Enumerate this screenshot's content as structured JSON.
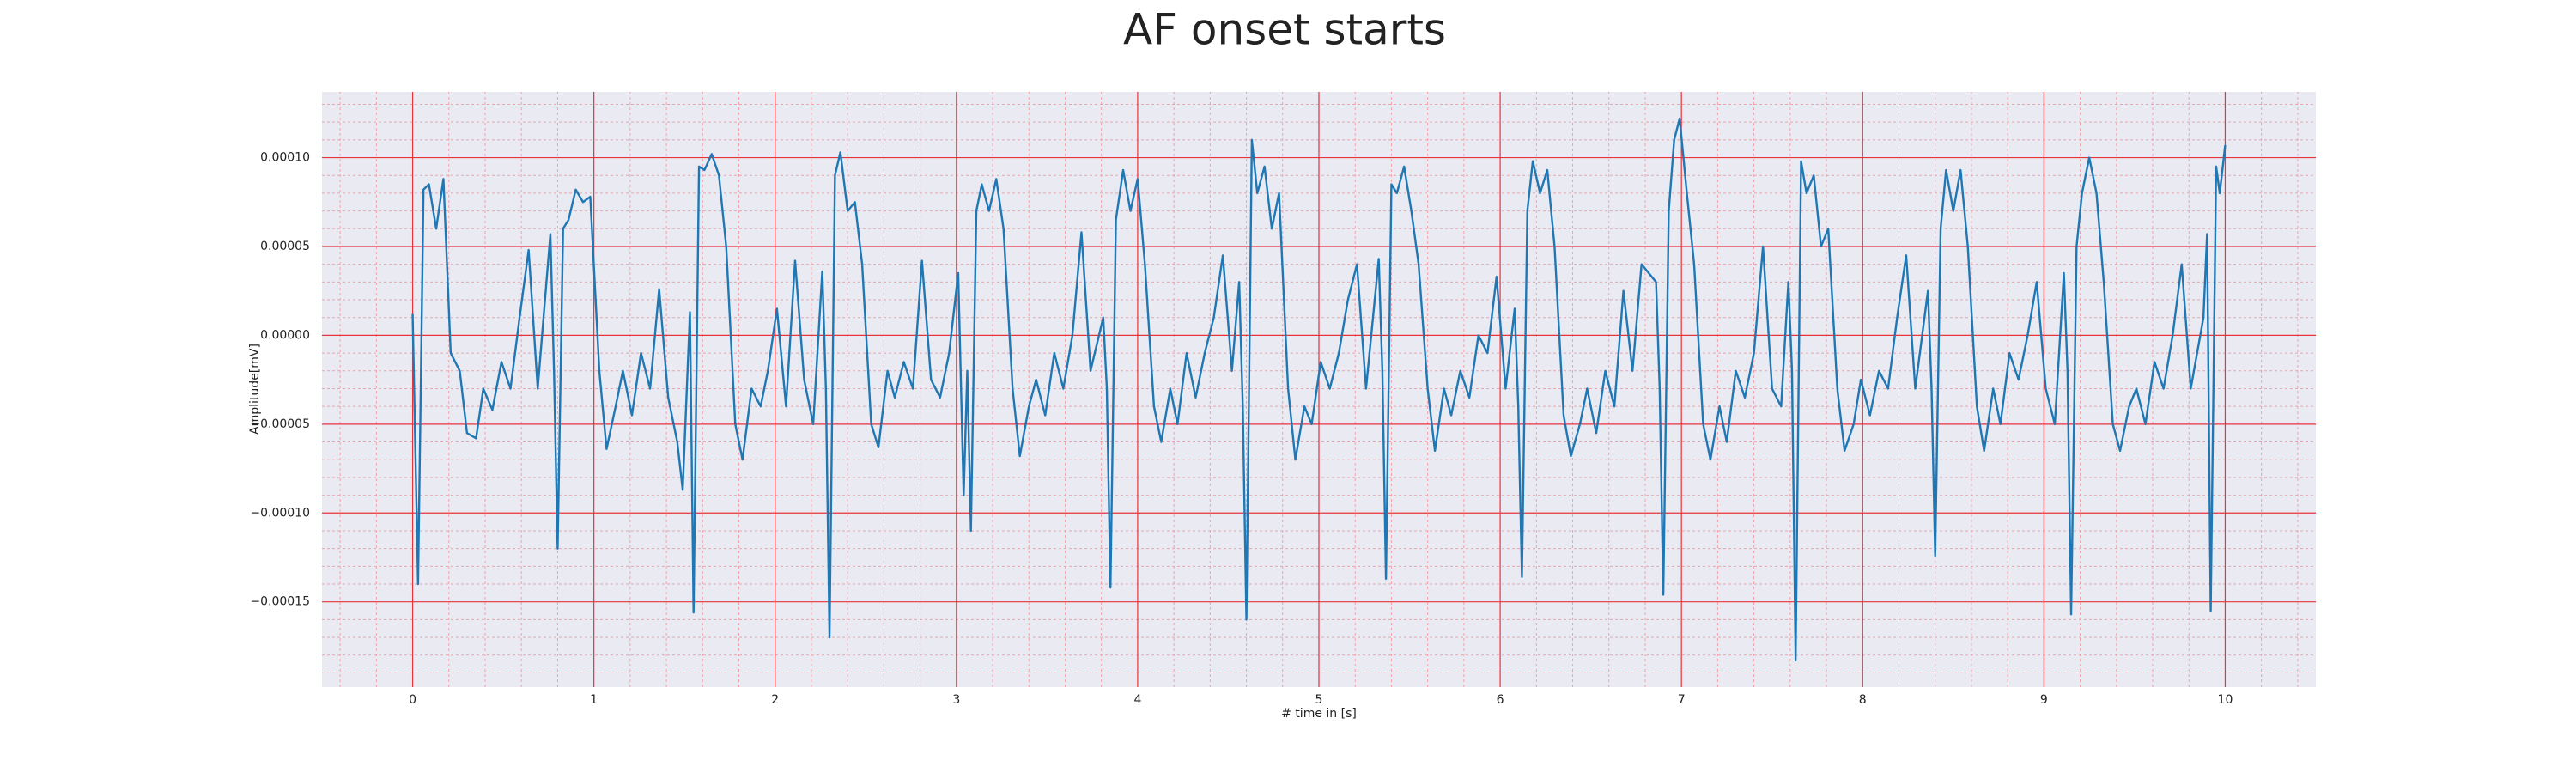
{
  "chart_data": {
    "type": "line",
    "title": "AF onset starts",
    "xlabel": "# time in [s]",
    "ylabel": "Amplitude[mV]",
    "color": "#1f77b4",
    "xlim": [
      -0.5,
      10.5
    ],
    "ylim": [
      -0.000198,
      0.000137
    ],
    "xticks": [
      0,
      1,
      2,
      3,
      4,
      5,
      6,
      7,
      8,
      9,
      10
    ],
    "yticks": [
      {
        "value": -0.00015,
        "label": "−0.00015"
      },
      {
        "value": -0.0001,
        "label": "−0.00010"
      },
      {
        "value": -5e-05,
        "label": "−0.00005"
      },
      {
        "value": 0,
        "label": "0.00000"
      },
      {
        "value": 5e-05,
        "label": "0.00005"
      },
      {
        "value": 0.0001,
        "label": "0.00010"
      }
    ],
    "grid": true,
    "minor_grid": true,
    "x": [
      0.0,
      0.03,
      0.06,
      0.09,
      0.13,
      0.17,
      0.21,
      0.26,
      0.3,
      0.35,
      0.39,
      0.44,
      0.49,
      0.54,
      0.59,
      0.64,
      0.69,
      0.76,
      0.78,
      0.8,
      0.83,
      0.86,
      0.9,
      0.94,
      0.98,
      1.03,
      1.07,
      1.12,
      1.16,
      1.21,
      1.26,
      1.31,
      1.36,
      1.41,
      1.46,
      1.49,
      1.53,
      1.55,
      1.58,
      1.61,
      1.65,
      1.69,
      1.73,
      1.78,
      1.82,
      1.87,
      1.92,
      1.96,
      2.01,
      2.06,
      2.11,
      2.16,
      2.21,
      2.26,
      2.28,
      2.3,
      2.33,
      2.36,
      2.4,
      2.44,
      2.48,
      2.53,
      2.57,
      2.62,
      2.66,
      2.71,
      2.76,
      2.81,
      2.86,
      2.91,
      2.96,
      3.01,
      3.04,
      3.06,
      3.08,
      3.11,
      3.14,
      3.18,
      3.22,
      3.26,
      3.31,
      3.35,
      3.4,
      3.44,
      3.49,
      3.54,
      3.59,
      3.64,
      3.69,
      3.74,
      3.81,
      3.83,
      3.85,
      3.88,
      3.92,
      3.96,
      4.0,
      4.04,
      4.09,
      4.13,
      4.18,
      4.22,
      4.27,
      4.32,
      4.37,
      4.42,
      4.47,
      4.52,
      4.56,
      4.58,
      4.6,
      4.63,
      4.66,
      4.7,
      4.74,
      4.78,
      4.83,
      4.87,
      4.92,
      4.96,
      5.01,
      5.06,
      5.11,
      5.16,
      5.21,
      5.26,
      5.33,
      5.35,
      5.37,
      5.4,
      5.43,
      5.47,
      5.51,
      5.55,
      5.6,
      5.64,
      5.69,
      5.73,
      5.78,
      5.83,
      5.88,
      5.93,
      5.98,
      6.03,
      6.08,
      6.1,
      6.12,
      6.15,
      6.18,
      6.22,
      6.26,
      6.3,
      6.35,
      6.39,
      6.44,
      6.48,
      6.53,
      6.58,
      6.63,
      6.68,
      6.73,
      6.78,
      6.86,
      6.88,
      6.9,
      6.93,
      6.96,
      6.99,
      7.03,
      7.07,
      7.12,
      7.16,
      7.21,
      7.25,
      7.3,
      7.35,
      7.4,
      7.45,
      7.5,
      7.55,
      7.59,
      7.61,
      7.63,
      7.66,
      7.69,
      7.73,
      7.77,
      7.81,
      7.86,
      7.9,
      7.95,
      7.99,
      8.04,
      8.09,
      8.14,
      8.19,
      8.24,
      8.29,
      8.36,
      8.38,
      8.4,
      8.43,
      8.46,
      8.5,
      8.54,
      8.58,
      8.63,
      8.67,
      8.72,
      8.76,
      8.81,
      8.86,
      8.91,
      8.96,
      9.01,
      9.06,
      9.11,
      9.13,
      9.15,
      9.18,
      9.21,
      9.25,
      9.29,
      9.33,
      9.38,
      9.42,
      9.47,
      9.51,
      9.56,
      9.61,
      9.66,
      9.71,
      9.76,
      9.81,
      9.88,
      9.9,
      9.92,
      9.95,
      9.97,
      10.0
    ],
    "values": [
      1.2e-05,
      -0.00014,
      8.2e-05,
      8.5e-05,
      6e-05,
      8.8e-05,
      -1e-05,
      -2e-05,
      -5.5e-05,
      -5.8e-05,
      -3e-05,
      -4.2e-05,
      -1.5e-05,
      -3e-05,
      1e-05,
      4.8e-05,
      -3e-05,
      5.7e-05,
      -2e-05,
      -0.00012,
      6e-05,
      6.5e-05,
      8.2e-05,
      7.5e-05,
      7.8e-05,
      -2e-05,
      -6.4e-05,
      -4e-05,
      -2e-05,
      -4.5e-05,
      -1e-05,
      -3e-05,
      2.6e-05,
      -3.5e-05,
      -6e-05,
      -8.7e-05,
      1.3e-05,
      -0.000156,
      9.5e-05,
      9.3e-05,
      0.000102,
      9e-05,
      5e-05,
      -5e-05,
      -7e-05,
      -3e-05,
      -4e-05,
      -2e-05,
      1.5e-05,
      -4e-05,
      4.2e-05,
      -2.5e-05,
      -5e-05,
      3.6e-05,
      -3e-05,
      -0.00017,
      9e-05,
      0.000103,
      7e-05,
      7.5e-05,
      4e-05,
      -5e-05,
      -6.3e-05,
      -2e-05,
      -3.5e-05,
      -1.5e-05,
      -3e-05,
      4.2e-05,
      -2.5e-05,
      -3.5e-05,
      -1e-05,
      3.5e-05,
      -9e-05,
      -2e-05,
      -0.00011,
      7e-05,
      8.5e-05,
      7e-05,
      8.8e-05,
      6e-05,
      -3e-05,
      -6.8e-05,
      -4e-05,
      -2.5e-05,
      -4.5e-05,
      -1e-05,
      -3e-05,
      0,
      5.8e-05,
      -2e-05,
      1e-05,
      -3e-05,
      -0.000142,
      6.5e-05,
      9.3e-05,
      7e-05,
      8.8e-05,
      4e-05,
      -4e-05,
      -6e-05,
      -3e-05,
      -5e-05,
      -1e-05,
      -3.5e-05,
      -1e-05,
      1e-05,
      4.5e-05,
      -2e-05,
      3e-05,
      -4e-05,
      -0.00016,
      0.00011,
      8e-05,
      9.5e-05,
      6e-05,
      8e-05,
      -3e-05,
      -7e-05,
      -4e-05,
      -5e-05,
      -1.5e-05,
      -3e-05,
      -1e-05,
      2e-05,
      4e-05,
      -3e-05,
      4.3e-05,
      -2e-05,
      -0.000137,
      8.5e-05,
      8e-05,
      9.5e-05,
      7e-05,
      4e-05,
      -3e-05,
      -6.5e-05,
      -3e-05,
      -4.5e-05,
      -2e-05,
      -3.5e-05,
      0,
      -1e-05,
      3.3e-05,
      -3e-05,
      1.5e-05,
      -4e-05,
      -0.000136,
      7e-05,
      9.8e-05,
      8e-05,
      9.3e-05,
      5e-05,
      -4.5e-05,
      -6.8e-05,
      -5e-05,
      -3e-05,
      -5.5e-05,
      -2e-05,
      -4e-05,
      2.5e-05,
      -2e-05,
      4e-05,
      3e-05,
      -3e-05,
      -0.000146,
      7e-05,
      0.00011,
      0.000122,
      8e-05,
      4e-05,
      -5e-05,
      -7e-05,
      -4e-05,
      -6e-05,
      -2e-05,
      -3.5e-05,
      -1e-05,
      5e-05,
      -3e-05,
      -4e-05,
      3e-05,
      -2e-05,
      -0.000183,
      9.8e-05,
      8e-05,
      9e-05,
      5e-05,
      6e-05,
      -3e-05,
      -6.5e-05,
      -5e-05,
      -2.5e-05,
      -4.5e-05,
      -2e-05,
      -3e-05,
      1e-05,
      4.5e-05,
      -3e-05,
      2.5e-05,
      -3e-05,
      -0.000124,
      6e-05,
      9.3e-05,
      7e-05,
      9.3e-05,
      5e-05,
      -4e-05,
      -6.5e-05,
      -3e-05,
      -5e-05,
      -1e-05,
      -2.5e-05,
      0,
      3e-05,
      -3e-05,
      -5e-05,
      3.5e-05,
      -2e-05,
      -0.000157,
      5e-05,
      8e-05,
      0.0001,
      8e-05,
      3e-05,
      -5e-05,
      -6.5e-05,
      -4e-05,
      -3e-05,
      -5e-05,
      -1.5e-05,
      -3e-05,
      0,
      4e-05,
      -3e-05,
      1e-05,
      5.7e-05,
      -0.000155,
      9.5e-05,
      8e-05,
      0.000107
    ]
  }
}
